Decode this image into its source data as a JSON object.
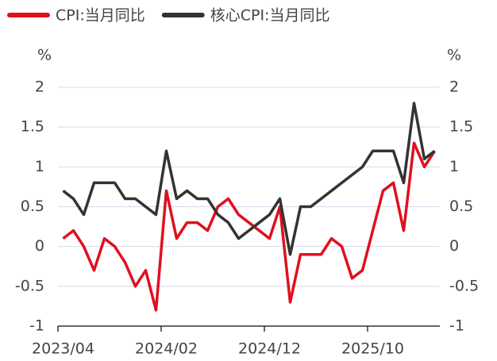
{
  "chart_data": {
    "type": "line",
    "ylabel": "%",
    "y2label": "%",
    "categories": [
      "2023/04",
      null,
      null,
      null,
      null,
      null,
      null,
      null,
      null,
      null,
      "2024/02",
      null,
      null,
      null,
      null,
      null,
      null,
      null,
      null,
      null,
      "2024/12",
      null,
      null,
      null,
      null,
      null,
      null,
      null,
      null,
      null,
      "2025/10",
      null,
      null,
      null,
      null,
      null,
      null
    ],
    "series": [
      {
        "name": "CPI:当月同比",
        "color": "#e0101e",
        "values": [
          0.1,
          0.2,
          0.0,
          -0.3,
          0.1,
          0.0,
          -0.2,
          -0.5,
          -0.3,
          -0.8,
          0.7,
          0.1,
          0.3,
          0.3,
          0.2,
          0.5,
          0.6,
          0.4,
          0.3,
          0.2,
          0.1,
          0.5,
          -0.7,
          -0.1,
          -0.1,
          -0.1,
          0.1,
          0.0,
          -0.4,
          -0.3,
          0.2,
          0.7,
          0.8,
          0.2,
          1.3,
          1.0,
          1.2
        ]
      },
      {
        "name": "核心CPI:当月同比",
        "color": "#333333",
        "values": [
          0.7,
          0.6,
          0.4,
          0.8,
          0.8,
          0.8,
          0.6,
          0.6,
          0.5,
          0.4,
          1.2,
          0.6,
          0.7,
          0.6,
          0.6,
          0.4,
          0.3,
          0.1,
          0.2,
          0.3,
          0.4,
          0.6,
          -0.1,
          0.5,
          0.5,
          0.6,
          0.7,
          0.8,
          0.9,
          1.0,
          1.2,
          1.2,
          1.2,
          0.8,
          1.8,
          1.1,
          1.2
        ]
      }
    ],
    "ylim": [
      -1,
      2
    ],
    "yticks": [
      -1,
      -0.5,
      0,
      0.5,
      1,
      1.5,
      2
    ],
    "y2lim": [
      -1,
      2
    ],
    "y2ticks": [
      -1,
      -0.5,
      0,
      0.5,
      1,
      1.5,
      2
    ],
    "grid": true,
    "legend": "top"
  }
}
